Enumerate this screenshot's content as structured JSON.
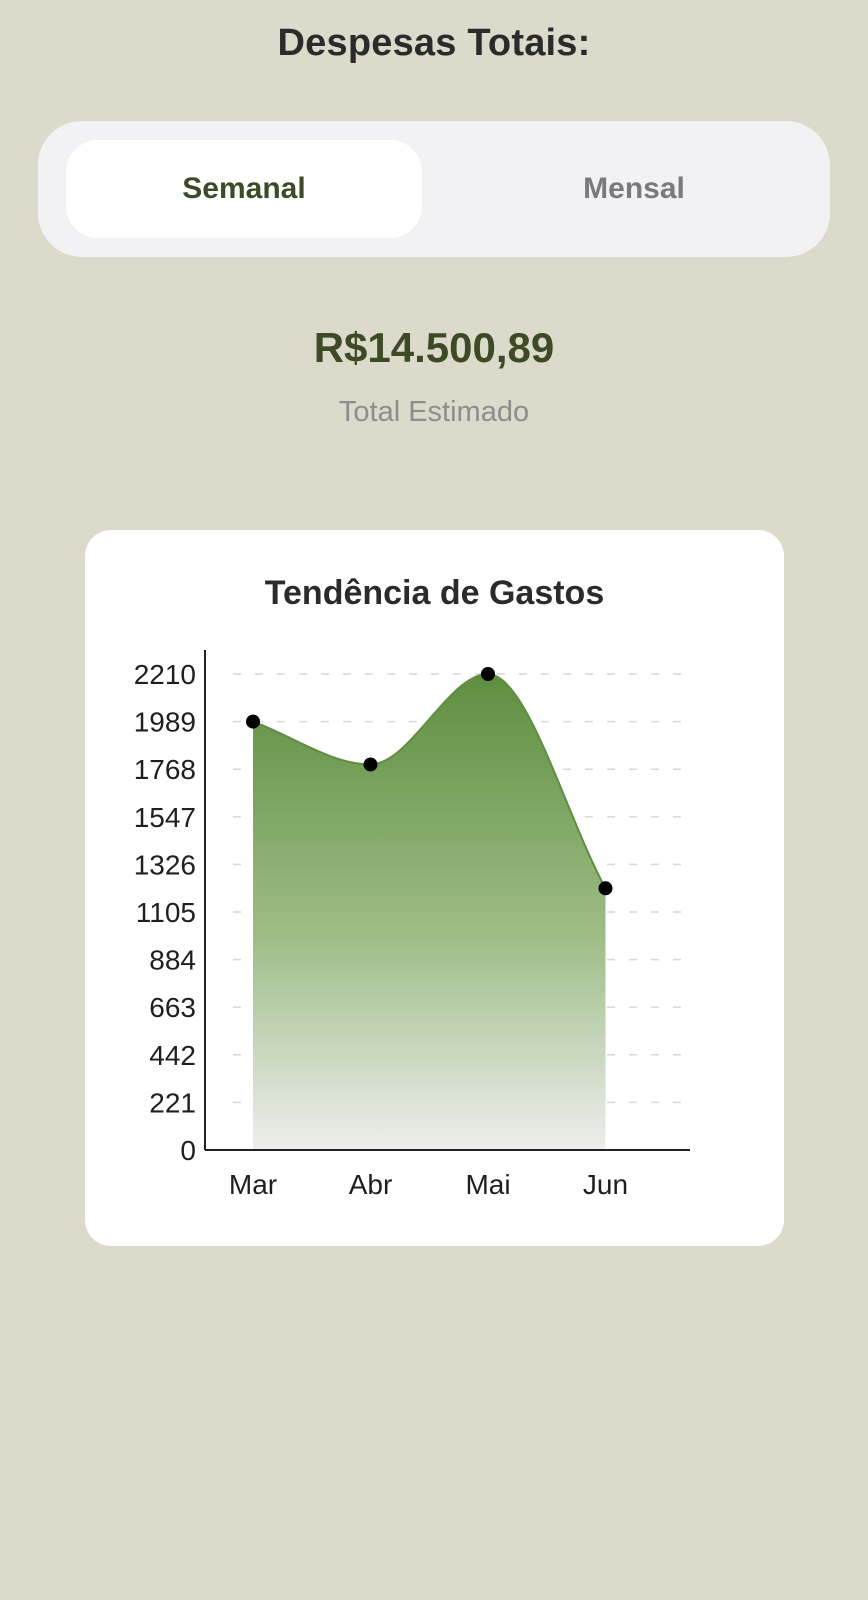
{
  "header": {
    "title": "Despesas Totais:"
  },
  "period_toggle": {
    "tabs": [
      {
        "label": "Semanal",
        "active": true
      },
      {
        "label": "Mensal",
        "active": false
      }
    ]
  },
  "summary": {
    "total": "R$14.500,89",
    "caption": "Total Estimado"
  },
  "colors": {
    "background": "#dcdacb",
    "accent": "#3d4a26",
    "area_top": "#5f8e40",
    "area_bottom": "#eeeeee"
  },
  "chart_data": {
    "type": "area",
    "title": "Tendência de Gastos",
    "categories": [
      "Mar",
      "Abr",
      "Mai",
      "Jun"
    ],
    "values": [
      1989,
      1790,
      2210,
      1215
    ],
    "yticks": [
      0,
      221,
      442,
      663,
      884,
      1105,
      1326,
      1547,
      1768,
      1989,
      2210
    ],
    "ylim": [
      0,
      2210
    ],
    "grid": true,
    "xlabel": "",
    "ylabel": ""
  }
}
